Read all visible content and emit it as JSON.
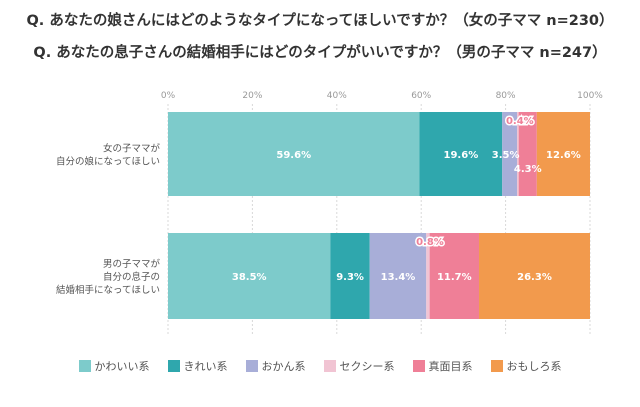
{
  "chart_data": {
    "type": "bar",
    "orientation": "horizontal",
    "stacked": true,
    "title": "Q. あなたの娘さんにはどのようなタイプになってほしいですか？（女の子ママ n=230）",
    "subtitle": "Q. あなたの息子さんの結婚相手にはどのタイプがいいですか？（男の子ママ n=247）",
    "x_ticks": [
      "0%",
      "20%",
      "40%",
      "60%",
      "80%",
      "100%"
    ],
    "xlim": [
      0,
      100
    ],
    "grid": true,
    "legend_position": "bottom",
    "categories": [
      [
        "女の子ママが",
        "自分の娘になってほしい"
      ],
      [
        "男の子ママが",
        "自分の息子の",
        "結婚相手になってほしい"
      ]
    ],
    "series": [
      {
        "name": "かわいい系",
        "color": "#7dcbcb",
        "values": [
          59.6,
          38.5
        ],
        "labels": [
          "59.6%",
          "38.5%"
        ]
      },
      {
        "name": "きれい系",
        "color": "#2fa7ad",
        "values": [
          19.6,
          9.3
        ],
        "labels": [
          "19.6%",
          "9.3%"
        ]
      },
      {
        "name": "おかん系",
        "color": "#a8aed8",
        "values": [
          3.5,
          13.4
        ],
        "labels": [
          "3.5%",
          "13.4%"
        ]
      },
      {
        "name": "セクシー系",
        "color": "#f1c4d3",
        "values": [
          0.4,
          0.8
        ],
        "labels": [
          "0.4%",
          "0.8%"
        ]
      },
      {
        "name": "真面目系",
        "color": "#ef7f97",
        "values": [
          4.3,
          11.7
        ],
        "labels": [
          "4.3%",
          "11.7%"
        ]
      },
      {
        "name": "おもしろ系",
        "color": "#f29a4d",
        "values": [
          12.6,
          26.3
        ],
        "labels": [
          "12.6%",
          "26.3%"
        ]
      }
    ]
  }
}
